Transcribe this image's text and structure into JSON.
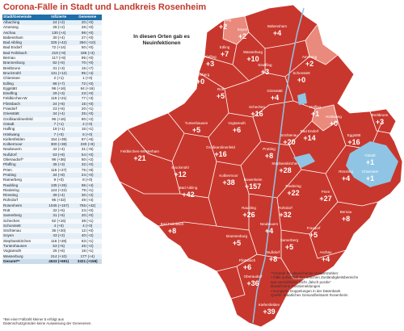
{
  "title": "Corona-Fälle in Stadt und Landkreis Rosenheim",
  "subtitle_line1": "In diesen Orten gab es",
  "subtitle_line2": "Neuinfektionen",
  "table": {
    "headers": [
      "Stadt/Gemeinde",
      "Infizierte",
      "Genesene"
    ],
    "rows": [
      [
        "Albaching",
        "24 (+2)",
        "20 (+0)"
      ],
      [
        "Amerang",
        "28 (+2)",
        "26 (+0)"
      ],
      [
        "Aschau",
        "130 (+4)",
        "98 (+0)"
      ],
      [
        "Babensham",
        "30 (+4)",
        "27 (+0)"
      ],
      [
        "Bad Aibling",
        "325 (+42)",
        "250 (+10)"
      ],
      [
        "Bad Endorf",
        "72 (+14)",
        "50 (+0)"
      ],
      [
        "Bad Feilnbach",
        "219 (+8)",
        "185 (+3)"
      ],
      [
        "Bernau",
        "117 (+8)",
        "95 (+0)"
      ],
      [
        "Brannenburg",
        "82 (+5)",
        "70 (+0)"
      ],
      [
        "Breitbrunn",
        "31 (+3)",
        "15 (+7)"
      ],
      [
        "Bruckmühl",
        "131 (+12)",
        "95 (+4)"
      ],
      [
        "Chiemsee",
        "2 (+1)",
        "1 (+0)"
      ],
      [
        "Edling",
        "88 (+7)",
        "72 (+0)"
      ],
      [
        "Eggstätt",
        "96 (+16)",
        "64 (+16)"
      ],
      [
        "Eiselfing",
        "29 (+3)",
        "23 (+0)"
      ],
      [
        "Feldkirchen-W",
        "119 (+21)",
        "77 (+3)"
      ],
      [
        "Flintsbach",
        "24 (+6)",
        "15 (+0)"
      ],
      [
        "Frasdorf",
        "23 (+5)",
        "20 (+1)"
      ],
      [
        "Griesstätt",
        "34 (+4)",
        "25 (+0)"
      ],
      [
        "Großkarolinenfeld",
        "96 (+16)",
        "80 (+2)"
      ],
      [
        "Gstadt",
        "7 (+1)",
        "4 (+0)"
      ],
      [
        "Halfing",
        "18 (+1)",
        "16 (+1)"
      ],
      [
        "Höslwang",
        "7 (+0)",
        "6 (+0)"
      ],
      [
        "Kiefersfelden",
        "154 (+39)",
        "87 (+6)"
      ],
      [
        "Kolbermoor",
        "300 (+38)",
        "230 (+9)"
      ],
      [
        "Neubeuern",
        "42 (+4)",
        "31 (+5)"
      ],
      [
        "Nußdorf",
        "63 (+8)",
        "54 (+0)"
      ],
      [
        "Oberaudorf*",
        "96 (+36)",
        "50 (+2)"
      ],
      [
        "Pfaffing",
        "35 (+3)",
        "32 (+0)"
      ],
      [
        "Prien",
        "115 (+27)",
        "75 (+8)"
      ],
      [
        "Prutting",
        "34 (+8)",
        "24 (+0)"
      ],
      [
        "Ramerberg",
        "9 (+0)",
        "8 (+0)"
      ],
      [
        "Raubling",
        "135 (+26)",
        "96 (+4)"
      ],
      [
        "Riedering",
        "124 (+22)",
        "79 (+1)"
      ],
      [
        "Rimsting",
        "39 (+4)",
        "30 (+2)"
      ],
      [
        "Rohrdorf",
        "95 (+32)",
        "49 (+4)"
      ],
      [
        "Rosenheim",
        "1045 (+157)",
        "755 (+42)"
      ],
      [
        "Rott",
        "32 (+5)",
        "24 (+0)"
      ],
      [
        "Samerberg",
        "31 (+5)",
        "20 (+0)"
      ],
      [
        "Schechen",
        "62 (+16)",
        "38 (+1)"
      ],
      [
        "Schonstett",
        "4 (+0)",
        "4 (+0)"
      ],
      [
        "Söchtenau",
        "35 (+20)",
        "12 (+0)"
      ],
      [
        "Soyen",
        "43 (+2)",
        "40 (+2)"
      ],
      [
        "Stephanskirchen",
        "116 (+28)",
        "63 (+1)"
      ],
      [
        "Tuntenhausen",
        "53 (+5)",
        "46 (+2)"
      ],
      [
        "Vogtareuth",
        "25 (+6)",
        "19 (+1)"
      ],
      [
        "Wasserburg",
        "214 (+10)",
        "177 (+4)"
      ]
    ],
    "total": [
      "Gesamt**",
      "4633 (+681)",
      "3321 (+158)"
    ]
  },
  "footnote_line1": "*Bei einer Fallzahl kleiner 5 erfolgt aus",
  "footnote_line2": "Datenschutzgründen keine Ausweisung der Genesenen.",
  "legend_note": [
    "**Gründe für abweichende Gesamtzahlen:",
    "• Fälle außerhalb des örtlichen Zuständigkeitsbereichs",
    "  aus verwaltlicher Sicht „falsch positiv“",
    "  klassifizierte Positivmeldungen",
    "• korrigierte Doppelungen in der Datenbank",
    "Quelle: Staatliches Gesundheitsamt Rosenheim"
  ],
  "colors": {
    "title": "#c0392b",
    "region_dark": "#c8372d",
    "region_light": "#e98a7c",
    "border": "#ffffff",
    "water": "#8fc4e4",
    "table_header": "#1f6fa8"
  },
  "map_labels": [
    {
      "name": "Albaching",
      "value": "+2"
    },
    {
      "name": "Soyen",
      "value": "+2"
    },
    {
      "name": "Edling",
      "value": "+7"
    },
    {
      "name": "Pfaffing",
      "value": "+3"
    },
    {
      "name": "Wasserburg",
      "value": "+10"
    },
    {
      "name": "Babensham",
      "value": "+4"
    },
    {
      "name": "Eiselfing",
      "value": "+3"
    },
    {
      "name": "Amerang",
      "value": "+2"
    },
    {
      "name": "Rott",
      "value": "+5"
    },
    {
      "name": "Ramerberg",
      "value": "+0"
    },
    {
      "name": "Griesstätt",
      "value": "+4"
    },
    {
      "name": "Schonstett",
      "value": "+0"
    },
    {
      "name": "Halfing",
      "value": "+1"
    },
    {
      "name": "Höslwang",
      "value": "+0"
    },
    {
      "name": "Breitbrunn",
      "value": "+3"
    },
    {
      "name": "Tuntenhausen",
      "value": "+5"
    },
    {
      "name": "Vogtareuth",
      "value": "+6"
    },
    {
      "name": "Schechen",
      "value": "+16"
    },
    {
      "name": "Söchtenau",
      "value": "+20"
    },
    {
      "name": "Bad Endorf",
      "value": "+14"
    },
    {
      "name": "Eggstätt",
      "value": "+16"
    },
    {
      "name": "Gstadt",
      "value": "+1"
    },
    {
      "name": "Chiemsee",
      "value": "+1"
    },
    {
      "name": "Feldkirchen-Westerham",
      "value": "+21"
    },
    {
      "name": "Großkarolinenfeld",
      "value": "+16"
    },
    {
      "name": "Prutting",
      "value": "+8"
    },
    {
      "name": "Stephanskirchen",
      "value": "+28"
    },
    {
      "name": "Rimsting",
      "value": "+4"
    },
    {
      "name": "Bruckmühl",
      "value": "+12"
    },
    {
      "name": "Bad Aibling",
      "value": "+42"
    },
    {
      "name": "Kolbermoor",
      "value": "+38"
    },
    {
      "name": "Rosenheim",
      "value": "+157"
    },
    {
      "name": "Riedering",
      "value": "+22"
    },
    {
      "name": "Prien",
      "value": "+27"
    },
    {
      "name": "Bernau",
      "value": "+8"
    },
    {
      "name": "Bad Feilnbach",
      "value": "+8"
    },
    {
      "name": "Raubling",
      "value": "+26"
    },
    {
      "name": "Rohrdorf",
      "value": "+32"
    },
    {
      "name": "Frasdorf",
      "value": "+5"
    },
    {
      "name": "Neubeuern",
      "value": "+4"
    },
    {
      "name": "Samerberg",
      "value": "+5"
    },
    {
      "name": "Aschau",
      "value": "+4"
    },
    {
      "name": "Brannenburg",
      "value": "+5"
    },
    {
      "name": "Flintsbach",
      "value": "+6"
    },
    {
      "name": "Nußdorf",
      "value": "+8"
    },
    {
      "name": "Oberaudorf",
      "value": "+36"
    },
    {
      "name": "Kiefersfelden",
      "value": "+39"
    }
  ]
}
